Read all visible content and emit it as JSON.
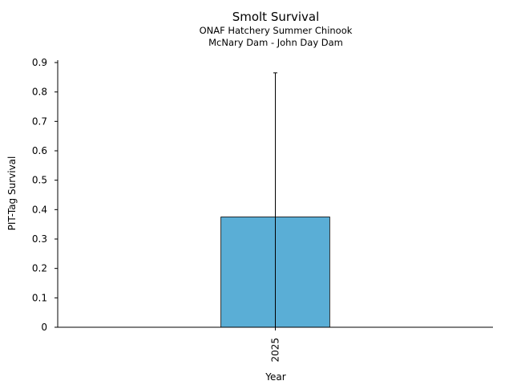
{
  "chart_data": {
    "type": "bar",
    "title": "Smolt Survival",
    "subtitle_lines": [
      "ONAF Hatchery Summer Chinook",
      "McNary Dam - John Day Dam"
    ],
    "xlabel": "Year",
    "ylabel": "PIT-Tag Survival",
    "categories": [
      "2025"
    ],
    "values": [
      0.375
    ],
    "error_upper": [
      0.865
    ],
    "error_lower": [
      0.0
    ],
    "ylim": [
      0,
      0.9
    ],
    "yticks": [
      "0",
      "0.1",
      "0.2",
      "0.3",
      "0.4",
      "0.5",
      "0.6",
      "0.7",
      "0.8",
      "0.9"
    ],
    "bar_color": "#5aaed6",
    "grid": false
  }
}
